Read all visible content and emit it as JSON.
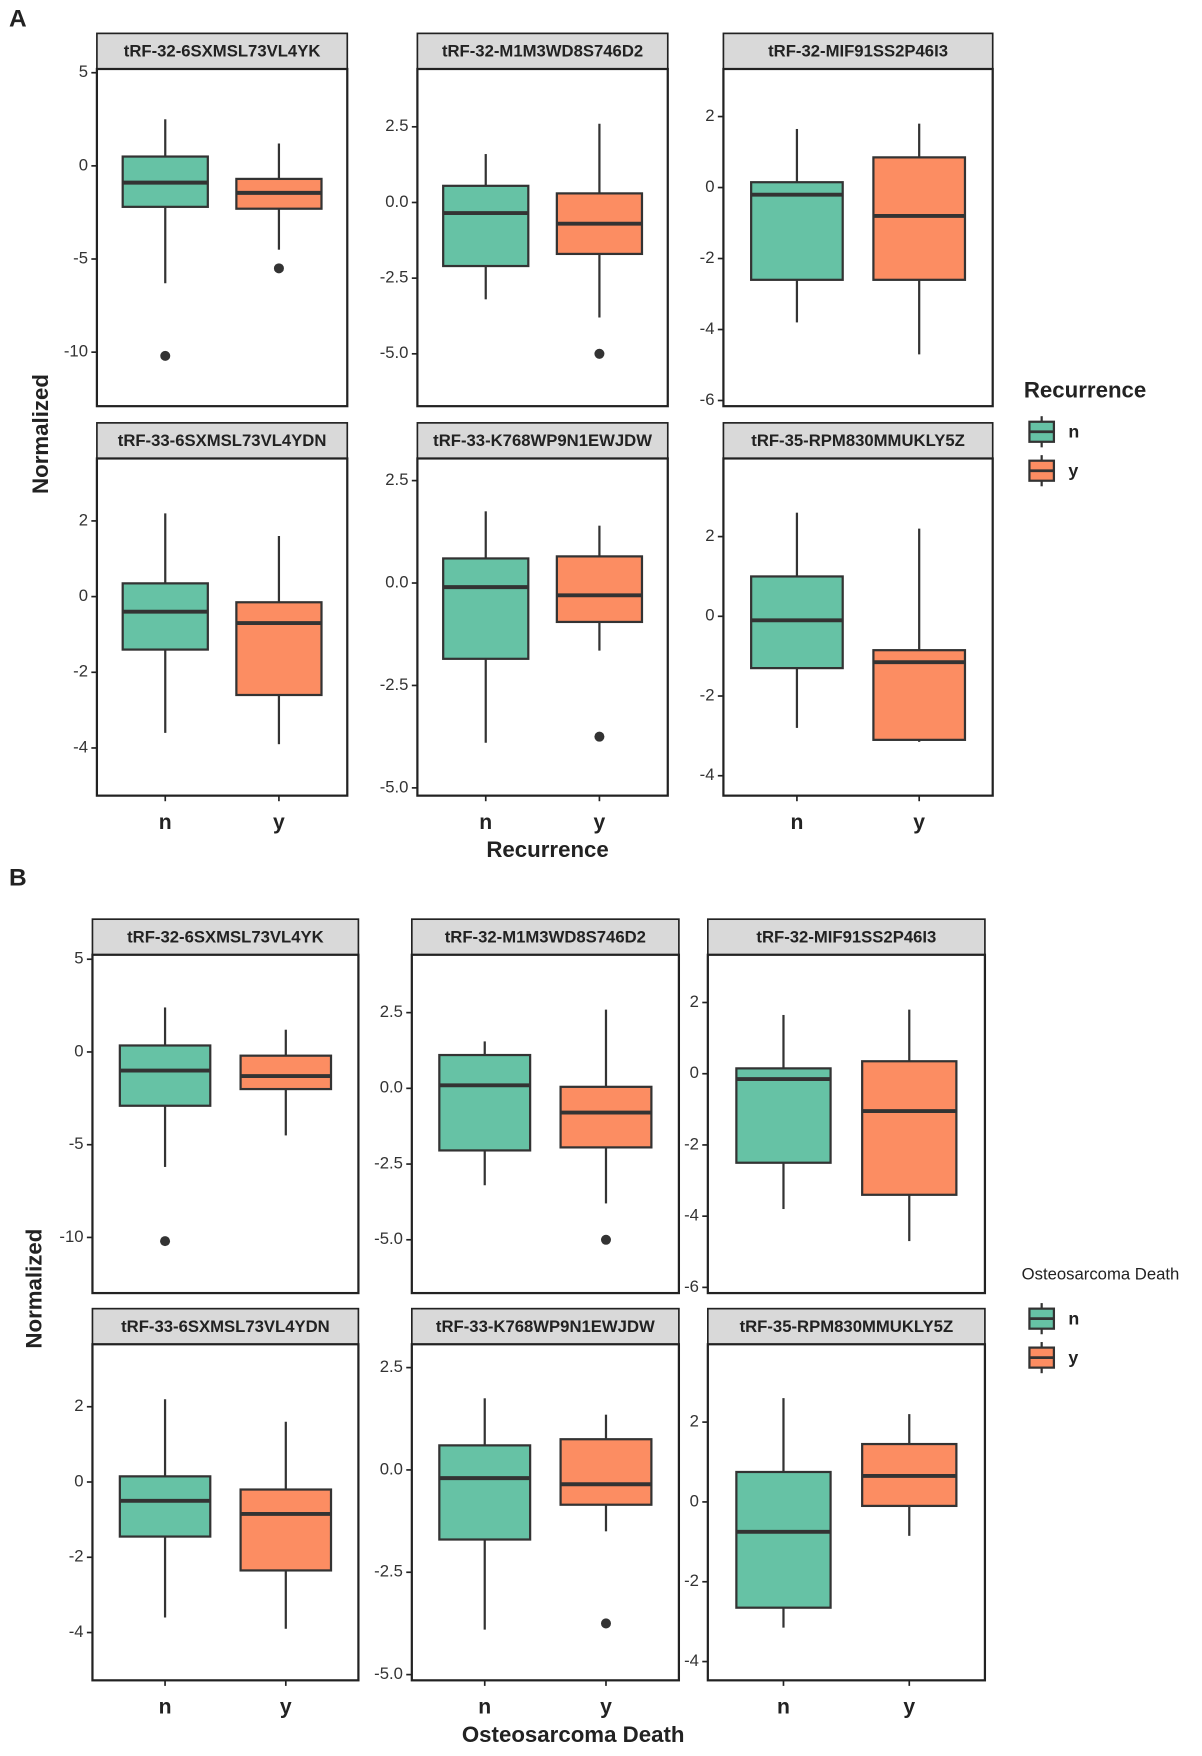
{
  "chart_data": [
    {
      "type": "box",
      "label": "A",
      "y_label": "Normalized",
      "x_label": "Recurrence",
      "legend_title": "Recurrence",
      "series": [
        {
          "name": "n",
          "color": "#66c2a5"
        },
        {
          "name": "y",
          "color": "#fc8d62"
        }
      ],
      "facets": [
        {
          "title": "tRF-32-6SXMSL73VL4YK",
          "ylim": [
            -12.9,
            5.2
          ],
          "yticks": [
            5,
            0,
            -5,
            -10
          ],
          "boxes": [
            {
              "whisker_low": -6.3,
              "q1": -2.2,
              "median": -0.9,
              "q3": 0.5,
              "whisker_high": 2.5,
              "outliers": [
                -10.2
              ]
            },
            {
              "whisker_low": -4.5,
              "q1": -2.3,
              "median": -1.45,
              "q3": -0.7,
              "whisker_high": 1.2,
              "outliers": [
                -5.5
              ]
            }
          ]
        },
        {
          "title": "tRF-32-M1M3WD8S746D2",
          "ylim": [
            -6.73,
            4.41
          ],
          "yticks": [
            2.5,
            {
              "value": 0,
              "label": "0.0"
            },
            -2.5,
            {
              "value": -5,
              "label": "-5.0"
            }
          ],
          "boxes": [
            {
              "whisker_low": -3.2,
              "q1": -2.1,
              "median": -0.35,
              "q3": 0.55,
              "whisker_high": 1.6
            },
            {
              "whisker_low": -3.8,
              "q1": -1.7,
              "median": -0.7,
              "q3": 0.3,
              "whisker_high": 2.6,
              "outliers": [
                -5.0
              ]
            }
          ]
        },
        {
          "title": "tRF-32-MIF91SS2P46I3",
          "ylim": [
            -6.16,
            3.34
          ],
          "yticks": [
            2,
            0,
            -2,
            -4,
            -6
          ],
          "boxes": [
            {
              "whisker_low": -3.8,
              "q1": -2.6,
              "median": -0.2,
              "q3": 0.15,
              "whisker_high": 1.65
            },
            {
              "whisker_low": -4.7,
              "q1": -2.6,
              "median": -0.8,
              "q3": 0.85,
              "whisker_high": 1.8
            }
          ]
        },
        {
          "title": "tRF-33-6SXMSL73VL4YDN",
          "ylim": [
            -5.26,
            3.65
          ],
          "yticks": [
            2,
            0,
            -2,
            -4
          ],
          "boxes": [
            {
              "whisker_low": -3.6,
              "q1": -1.4,
              "median": -0.4,
              "q3": 0.35,
              "whisker_high": 2.2
            },
            {
              "whisker_low": -3.9,
              "q1": -2.6,
              "median": -0.7,
              "q3": -0.15,
              "whisker_high": 1.6
            }
          ]
        },
        {
          "title": "tRF-33-K768WP9N1EWJDW",
          "ylim": [
            -5.19,
            3.04
          ],
          "yticks": [
            2.5,
            {
              "value": 0,
              "label": "0.0"
            },
            -2.5,
            {
              "value": -5,
              "label": "-5.0"
            }
          ],
          "boxes": [
            {
              "whisker_low": -3.9,
              "q1": -1.85,
              "median": -0.1,
              "q3": 0.6,
              "whisker_high": 1.75
            },
            {
              "whisker_low": -1.65,
              "q1": -0.95,
              "median": -0.3,
              "q3": 0.65,
              "whisker_high": 1.4,
              "outliers": [
                -3.75
              ]
            }
          ]
        },
        {
          "title": "tRF-35-RPM830MMUKLY5Z",
          "ylim": [
            -4.5,
            3.96
          ],
          "yticks": [
            2,
            0,
            -2,
            -4
          ],
          "boxes": [
            {
              "whisker_low": -2.8,
              "q1": -1.3,
              "median": -0.1,
              "q3": 1.0,
              "whisker_high": 2.6
            },
            {
              "whisker_low": -3.15,
              "q1": -3.1,
              "median": -1.15,
              "q3": -0.85,
              "whisker_high": 2.2
            }
          ]
        }
      ]
    },
    {
      "type": "box",
      "label": "B",
      "y_label": "Normalized",
      "x_label": "Osteosarcoma Death",
      "legend_title": "Osteosarcoma Death",
      "series": [
        {
          "name": "n",
          "color": "#66c2a5"
        },
        {
          "name": "y",
          "color": "#fc8d62"
        }
      ],
      "facets": [
        {
          "title": "tRF-32-6SXMSL73VL4YK",
          "ylim": [
            -13.0,
            5.24
          ],
          "yticks": [
            5,
            0,
            -5,
            -10
          ],
          "boxes": [
            {
              "whisker_low": -6.2,
              "q1": -2.9,
              "median": -1.0,
              "q3": 0.35,
              "whisker_high": 2.4,
              "outliers": [
                -10.2
              ]
            },
            {
              "whisker_low": -4.5,
              "q1": -2.0,
              "median": -1.3,
              "q3": -0.2,
              "whisker_high": 1.2
            }
          ]
        },
        {
          "title": "tRF-32-M1M3WD8S746D2",
          "ylim": [
            -6.76,
            4.41
          ],
          "yticks": [
            2.5,
            {
              "value": 0,
              "label": "0.0"
            },
            -2.5,
            {
              "value": -5,
              "label": "-5.0"
            }
          ],
          "boxes": [
            {
              "whisker_low": -3.2,
              "q1": -2.05,
              "median": 0.1,
              "q3": 1.1,
              "whisker_high": 1.55
            },
            {
              "whisker_low": -3.8,
              "q1": -1.95,
              "median": -0.8,
              "q3": 0.05,
              "whisker_high": 2.6,
              "outliers": [
                -5.0
              ]
            }
          ]
        },
        {
          "title": "tRF-32-MIF91SS2P46I3",
          "ylim": [
            -6.16,
            3.34
          ],
          "yticks": [
            2,
            0,
            -2,
            -4,
            -6
          ],
          "boxes": [
            {
              "whisker_low": -3.8,
              "q1": -2.5,
              "median": -0.15,
              "q3": 0.15,
              "whisker_high": 1.65
            },
            {
              "whisker_low": -4.7,
              "q1": -3.4,
              "median": -1.05,
              "q3": 0.35,
              "whisker_high": 1.8
            }
          ]
        },
        {
          "title": "tRF-33-6SXMSL73VL4YDN",
          "ylim": [
            -5.27,
            3.66
          ],
          "yticks": [
            2,
            0,
            -2,
            -4
          ],
          "boxes": [
            {
              "whisker_low": -3.6,
              "q1": -1.45,
              "median": -0.5,
              "q3": 0.15,
              "whisker_high": 2.2
            },
            {
              "whisker_low": -3.9,
              "q1": -2.35,
              "median": -0.85,
              "q3": -0.2,
              "whisker_high": 1.6
            }
          ]
        },
        {
          "title": "tRF-33-K768WP9N1EWJDW",
          "ylim": [
            -5.14,
            3.07
          ],
          "yticks": [
            2.5,
            {
              "value": 0,
              "label": "0.0"
            },
            -2.5,
            {
              "value": -5,
              "label": "-5.0"
            }
          ],
          "boxes": [
            {
              "whisker_low": -3.9,
              "q1": -1.7,
              "median": -0.2,
              "q3": 0.6,
              "whisker_high": 1.75
            },
            {
              "whisker_low": -1.5,
              "q1": -0.85,
              "median": -0.35,
              "q3": 0.75,
              "whisker_high": 1.35,
              "outliers": [
                -3.75
              ]
            }
          ]
        },
        {
          "title": "tRF-35-RPM830MMUKLY5Z",
          "ylim": [
            -4.47,
            3.95
          ],
          "yticks": [
            2,
            0,
            -2,
            -4
          ],
          "boxes": [
            {
              "whisker_low": -3.15,
              "q1": -2.65,
              "median": -0.75,
              "q3": 0.75,
              "whisker_high": 2.6
            },
            {
              "whisker_low": -0.85,
              "q1": -0.1,
              "median": 0.65,
              "q3": 1.45,
              "whisker_high": 2.2
            }
          ]
        }
      ]
    }
  ]
}
